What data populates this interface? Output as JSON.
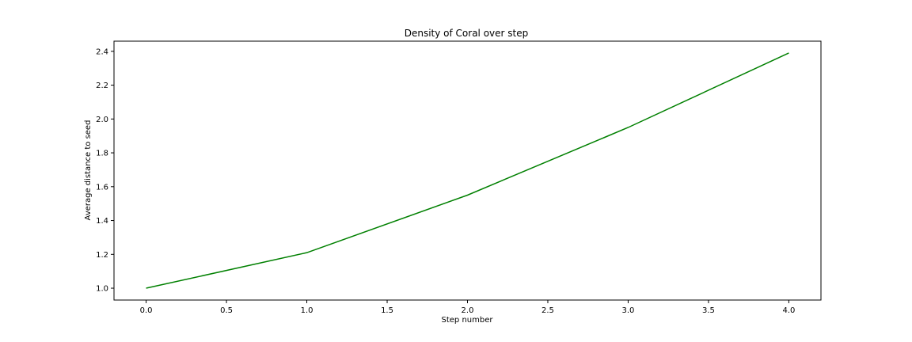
{
  "chart_data": {
    "type": "line",
    "title": "Density of Coral over step",
    "xlabel": "Step number",
    "ylabel": "Average distance to seed",
    "xlim": [
      -0.2,
      4.2
    ],
    "ylim": [
      0.93,
      2.46
    ],
    "xticks": [
      0.0,
      0.5,
      1.0,
      1.5,
      2.0,
      2.5,
      3.0,
      3.5,
      4.0
    ],
    "xtick_labels": [
      "0.0",
      "0.5",
      "1.0",
      "1.5",
      "2.0",
      "2.5",
      "3.0",
      "3.5",
      "4.0"
    ],
    "yticks": [
      1.0,
      1.2,
      1.4,
      1.6,
      1.8,
      2.0,
      2.2,
      2.4
    ],
    "ytick_labels": [
      "1.0",
      "1.2",
      "1.4",
      "1.6",
      "1.8",
      "2.0",
      "2.2",
      "2.4"
    ],
    "grid": false,
    "series": [
      {
        "color": "#008000",
        "x": [
          0,
          1,
          2,
          3,
          4
        ],
        "y": [
          1.0,
          1.21,
          1.55,
          1.95,
          2.39
        ]
      }
    ]
  }
}
